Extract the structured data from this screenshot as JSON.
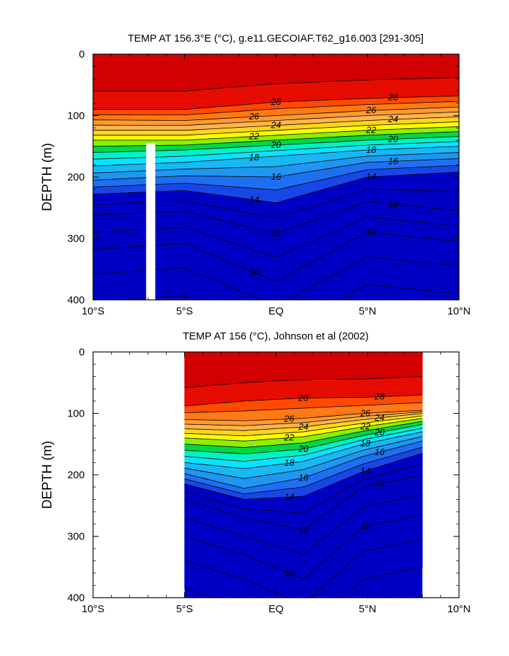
{
  "chart_data": [
    {
      "type": "heatmap",
      "title": "TEMP AT 156.3°E (°C), g.e11.GECOIAF.T62_g16.003 [291-305]",
      "xlabel": "",
      "ylabel": "DEPTH (m)",
      "xlim": [
        -10,
        10
      ],
      "ylim": [
        400,
        0
      ],
      "x_ticks": [
        -10,
        -5,
        0,
        5,
        10
      ],
      "x_tick_labels": [
        "10°S",
        "5°S",
        "EQ",
        "5°N",
        "10°N"
      ],
      "y_ticks": [
        0,
        100,
        200,
        300,
        400
      ],
      "y_tick_labels": [
        "0",
        "100",
        "200",
        "300",
        "400"
      ],
      "data_x_range": [
        -10,
        10
      ],
      "contour_levels": [
        10,
        12,
        14,
        16,
        18,
        20,
        22,
        24,
        26,
        28
      ],
      "labeled_isotherms": [
        {
          "value": 28,
          "depths": [
            90,
            90,
            78,
            72,
            68
          ]
        },
        {
          "value": 26,
          "depths": [
            107,
            108,
            100,
            92,
            86
          ]
        },
        {
          "value": 24,
          "depths": [
            124,
            124,
            116,
            108,
            102
          ]
        },
        {
          "value": 22,
          "depths": [
            140,
            140,
            132,
            124,
            118
          ]
        },
        {
          "value": 20,
          "depths": [
            160,
            156,
            148,
            140,
            134
          ]
        },
        {
          "value": 18,
          "depths": [
            182,
            176,
            166,
            156,
            150
          ]
        },
        {
          "value": 16,
          "depths": [
            205,
            198,
            200,
            176,
            170
          ]
        },
        {
          "value": 14,
          "depths": [
            228,
            222,
            242,
            200,
            192
          ]
        },
        {
          "value": 12,
          "depths": [
            262,
            256,
            292,
            240,
            255
          ]
        },
        {
          "value": 10,
          "depths": [
            318,
            308,
            370,
            290,
            305
          ]
        }
      ],
      "missing_data_gap": {
        "x_range": [
          -7.1,
          -6.6
        ],
        "depth_range": [
          145,
          400
        ]
      }
    },
    {
      "type": "heatmap",
      "title": "TEMP AT 156 (°C), Johnson et al (2002)",
      "xlabel": "",
      "ylabel": "DEPTH (m)",
      "xlim": [
        -10,
        10
      ],
      "ylim": [
        400,
        0
      ],
      "x_ticks": [
        -10,
        -5,
        0,
        5,
        10
      ],
      "x_tick_labels": [
        "10°S",
        "5°S",
        "EQ",
        "5°N",
        "10°N"
      ],
      "y_ticks": [
        0,
        100,
        200,
        300,
        400
      ],
      "y_tick_labels": [
        "0",
        "100",
        "200",
        "300",
        "400"
      ],
      "data_x_range": [
        -5,
        8
      ],
      "contour_levels": [
        10,
        12,
        14,
        16,
        18,
        20,
        22,
        24,
        26,
        28
      ],
      "labeled_isotherms": [
        {
          "value": 28,
          "depths": [
            88,
            80,
            75,
            74,
            70
          ]
        },
        {
          "value": 26,
          "depths": [
            110,
            112,
            108,
            100,
            95
          ]
        },
        {
          "value": 24,
          "depths": [
            125,
            128,
            122,
            110,
            100
          ]
        },
        {
          "value": 22,
          "depths": [
            140,
            145,
            138,
            122,
            108
          ]
        },
        {
          "value": 20,
          "depths": [
            160,
            166,
            158,
            136,
            118
          ]
        },
        {
          "value": 18,
          "depths": [
            180,
            190,
            178,
            150,
            130
          ]
        },
        {
          "value": 16,
          "depths": [
            198,
            222,
            205,
            170,
            145
          ]
        },
        {
          "value": 14,
          "depths": [
            215,
            240,
            235,
            195,
            165
          ]
        },
        {
          "value": 12,
          "depths": [
            240,
            270,
            290,
            220,
            200
          ]
        },
        {
          "value": 10,
          "depths": [
            300,
            330,
            370,
            285,
            265
          ]
        }
      ]
    }
  ],
  "colors": {
    "palette": [
      "#0000c4",
      "#1747e6",
      "#1f6ff2",
      "#1f96f0",
      "#18b8f5",
      "#08e4ff",
      "#00f2c4",
      "#00d844",
      "#8cf000",
      "#fffb00",
      "#ffd41c",
      "#ffb44c",
      "#ff9a32",
      "#ff7a14",
      "#ff4a00",
      "#e60c00",
      "#d20000"
    ],
    "contour_line": "#000000",
    "gap": "#ffffff"
  }
}
